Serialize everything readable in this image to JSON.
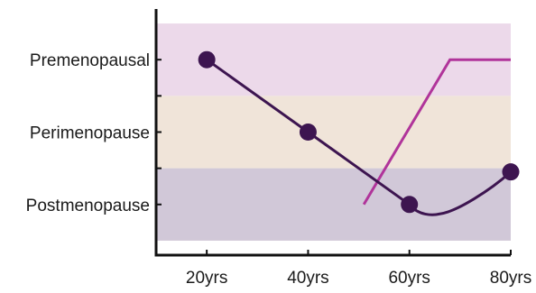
{
  "chart_data": {
    "type": "line",
    "x_categories": [
      "20yrs",
      "40yrs",
      "60yrs",
      "80yrs"
    ],
    "y_categories": [
      "Premenopausal",
      "Perimenopause",
      "Postmenopause"
    ],
    "bands": [
      {
        "stage": "Premenopausal",
        "from": 2.5,
        "to": 3.5,
        "color": "#ecd9ea"
      },
      {
        "stage": "Perimenopause",
        "from": 1.5,
        "to": 2.5,
        "color": "#f0e4d9"
      },
      {
        "stage": "Postmenopause",
        "from": 0.5,
        "to": 1.5,
        "color": "#d1c8d8"
      }
    ],
    "series": [
      {
        "color": "#3d1550",
        "markers": true,
        "points": [
          {
            "x": 20,
            "y": 3.0
          },
          {
            "x": 40,
            "y": 2.0
          },
          {
            "x": 60,
            "y": 1.0
          },
          {
            "x": 80,
            "y": 1.45
          }
        ],
        "curve_min": {
          "x": 66,
          "y": 0.87
        }
      },
      {
        "color": "#b0349a",
        "markers": false,
        "points": [
          {
            "x": 51,
            "y": 1.0
          },
          {
            "x": 68,
            "y": 3.0
          },
          {
            "x": 80,
            "y": 3.0
          }
        ]
      }
    ],
    "xlim": [
      10,
      80
    ],
    "ylim": [
      0.3,
      3.7
    ],
    "y_minor_ticks": [
      2.5,
      1.5
    ],
    "grid": false,
    "legend": "none"
  }
}
